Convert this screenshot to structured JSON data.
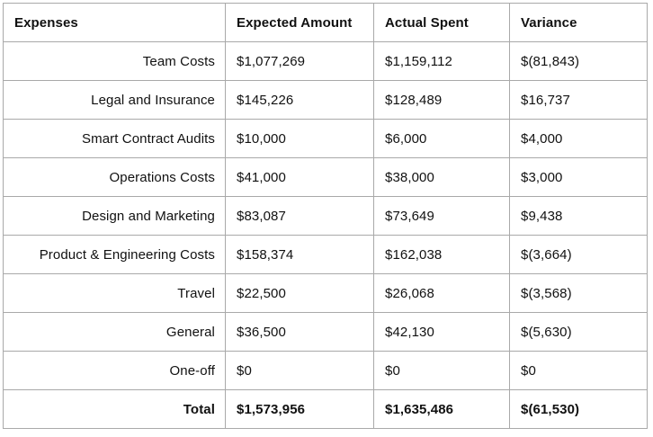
{
  "table": {
    "headers": [
      "Expenses",
      "Expected Amount",
      "Actual Spent",
      "Variance"
    ],
    "rows": [
      {
        "label": "Team Costs",
        "expected": "$1,077,269",
        "actual": "$1,159,112",
        "variance": "$(81,843)"
      },
      {
        "label": "Legal and Insurance",
        "expected": "$145,226",
        "actual": "$128,489",
        "variance": "$16,737"
      },
      {
        "label": "Smart Contract Audits",
        "expected": "$10,000",
        "actual": "$6,000",
        "variance": "$4,000"
      },
      {
        "label": "Operations Costs",
        "expected": "$41,000",
        "actual": "$38,000",
        "variance": "$3,000"
      },
      {
        "label": "Design and Marketing",
        "expected": "$83,087",
        "actual": "$73,649",
        "variance": "$9,438"
      },
      {
        "label": "Product & Engineering Costs",
        "expected": "$158,374",
        "actual": "$162,038",
        "variance": "$(3,664)"
      },
      {
        "label": "Travel",
        "expected": "$22,500",
        "actual": "$26,068",
        "variance": "$(3,568)"
      },
      {
        "label": "General",
        "expected": "$36,500",
        "actual": "$42,130",
        "variance": "$(5,630)"
      },
      {
        "label": "One-off",
        "expected": "$0",
        "actual": "$0",
        "variance": "$0"
      }
    ],
    "total": {
      "label": "Total",
      "expected": "$1,573,956",
      "actual": "$1,635,486",
      "variance": "$(61,530)"
    }
  },
  "colors": {
    "border": "#a9a9a9",
    "text": "#111111",
    "background": "#ffffff"
  }
}
